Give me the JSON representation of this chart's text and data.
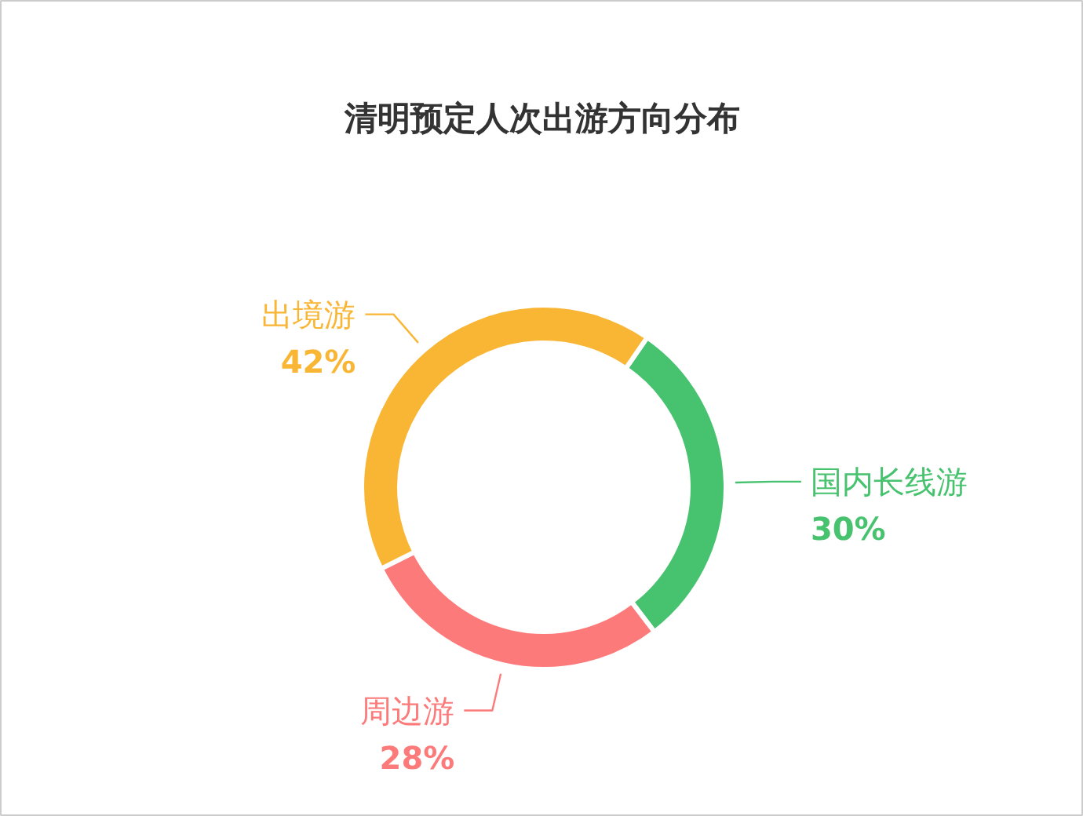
{
  "chart_data": {
    "type": "donut",
    "title": "清明预定人次出游方向分布",
    "categories": [
      "国内长线游",
      "周边游",
      "出境游"
    ],
    "values": [
      30,
      28,
      42
    ],
    "colors": [
      "#47c26f",
      "#fd7a7a",
      "#f9b634"
    ],
    "value_labels": [
      "30%",
      "28%",
      "42%"
    ]
  }
}
